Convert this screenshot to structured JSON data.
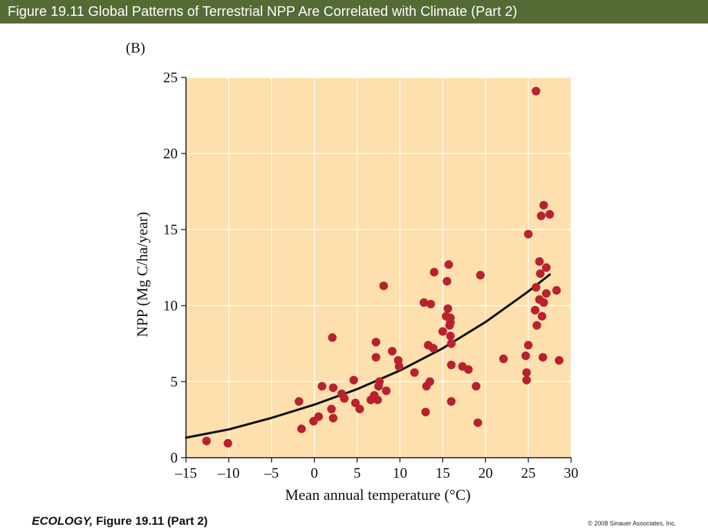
{
  "header": {
    "title": "Figure 19.11  Global Patterns of Terrestrial NPP Are Correlated with Climate (Part 2)",
    "bar_color": "#556b35"
  },
  "panel_label": "(B)",
  "footer": {
    "book": "ECOLOGY,",
    "figure": " Figure 19.11 (Part 2)",
    "copyright": "© 2008 Sinauer Associates, Inc."
  },
  "chart_data": {
    "type": "scatter",
    "title": "",
    "xlabel": "Mean annual temperature (°C)",
    "ylabel": "NPP (Mg C/ha/year)",
    "xlim": [
      -15,
      30
    ],
    "ylim": [
      0,
      25
    ],
    "xticks": [
      -15,
      -10,
      -5,
      0,
      5,
      10,
      15,
      20,
      25,
      30
    ],
    "xtick_labels": [
      "–15",
      "–10",
      "–5",
      "0",
      "5",
      "10",
      "15",
      "20",
      "25",
      "30"
    ],
    "yticks": [
      0,
      5,
      10,
      15,
      20,
      25
    ],
    "ytick_labels": [
      "0",
      "5",
      "10",
      "15",
      "20",
      "25"
    ],
    "grid": true,
    "plot_background": "#fde0ad",
    "point_color": "#b9212f",
    "curve_color": "#111111",
    "series": [
      {
        "type": "scatter",
        "points": [
          [
            -12.6,
            1.1
          ],
          [
            -10.1,
            0.95
          ],
          [
            -1.8,
            3.7
          ],
          [
            -1.5,
            1.9
          ],
          [
            -0.1,
            2.4
          ],
          [
            0.5,
            2.7
          ],
          [
            0.9,
            4.7
          ],
          [
            2.0,
            3.2
          ],
          [
            2.1,
            7.9
          ],
          [
            2.2,
            4.6
          ],
          [
            2.2,
            2.6
          ],
          [
            3.2,
            4.2
          ],
          [
            3.5,
            3.9
          ],
          [
            4.6,
            5.1
          ],
          [
            4.8,
            3.6
          ],
          [
            5.3,
            3.2
          ],
          [
            6.6,
            3.8
          ],
          [
            7.0,
            4.1
          ],
          [
            7.2,
            7.6
          ],
          [
            7.2,
            6.6
          ],
          [
            7.4,
            3.8
          ],
          [
            7.5,
            4.7
          ],
          [
            7.6,
            5.0
          ],
          [
            8.1,
            11.3
          ],
          [
            8.4,
            4.4
          ],
          [
            9.1,
            7.0
          ],
          [
            9.8,
            6.4
          ],
          [
            9.9,
            6.0
          ],
          [
            11.7,
            5.6
          ],
          [
            12.8,
            10.2
          ],
          [
            13.0,
            3.0
          ],
          [
            13.1,
            4.7
          ],
          [
            13.3,
            7.4
          ],
          [
            13.5,
            5.0
          ],
          [
            13.6,
            10.1
          ],
          [
            13.9,
            7.2
          ],
          [
            14.0,
            12.2
          ],
          [
            15.0,
            8.3
          ],
          [
            15.4,
            9.3
          ],
          [
            15.5,
            11.6
          ],
          [
            15.6,
            9.8
          ],
          [
            15.7,
            12.7
          ],
          [
            15.8,
            8.7
          ],
          [
            15.9,
            9.2
          ],
          [
            15.9,
            8.9
          ],
          [
            15.9,
            8.0
          ],
          [
            16.0,
            7.5
          ],
          [
            16.0,
            6.1
          ],
          [
            16.0,
            3.7
          ],
          [
            17.3,
            6.0
          ],
          [
            18.0,
            5.8
          ],
          [
            18.9,
            4.7
          ],
          [
            19.1,
            2.3
          ],
          [
            19.4,
            12.0
          ],
          [
            22.1,
            6.5
          ],
          [
            24.7,
            6.7
          ],
          [
            24.8,
            5.6
          ],
          [
            24.8,
            5.1
          ],
          [
            25.0,
            7.4
          ],
          [
            25.0,
            14.7
          ],
          [
            25.8,
            9.7
          ],
          [
            25.9,
            11.2
          ],
          [
            25.9,
            24.1
          ],
          [
            26.0,
            8.7
          ],
          [
            26.3,
            12.9
          ],
          [
            26.3,
            10.4
          ],
          [
            26.4,
            12.1
          ],
          [
            26.5,
            15.9
          ],
          [
            26.6,
            9.3
          ],
          [
            26.7,
            6.6
          ],
          [
            26.8,
            16.6
          ],
          [
            26.8,
            10.2
          ],
          [
            27.1,
            10.8
          ],
          [
            27.1,
            12.5
          ],
          [
            27.5,
            16.0
          ],
          [
            28.3,
            11.0
          ],
          [
            28.6,
            6.4
          ]
        ]
      },
      {
        "type": "line",
        "points": [
          [
            -15,
            1.32
          ],
          [
            -10,
            1.86
          ],
          [
            -5,
            2.62
          ],
          [
            0,
            3.49
          ],
          [
            5,
            4.51
          ],
          [
            10,
            5.73
          ],
          [
            15,
            7.19
          ],
          [
            20,
            8.92
          ],
          [
            25,
            10.93
          ],
          [
            27.5,
            12.04
          ]
        ]
      }
    ]
  }
}
